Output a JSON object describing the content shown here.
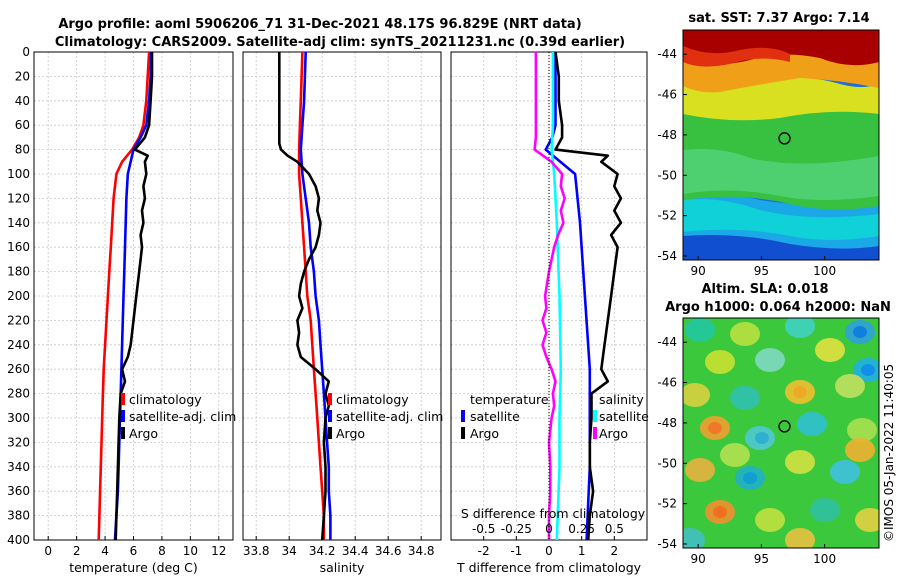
{
  "header": {
    "title1": "Argo profile: aoml 5906206_71 31-Dec-2021 48.17S 96.829E (NRT data)",
    "title2": "Climatology: CARS2009. Satellite-adj clim: synTS_20211231.nc (0.39d earlier)"
  },
  "side_label": "©IMOS 05-Jan-2022 11:40:05",
  "colors": {
    "climatology": "#ff0000",
    "satellite": "#0000ff",
    "argo": "#000000",
    "temp_diff": "#ff00ff",
    "sal_diff": "#00ffff"
  },
  "depth_ticks": [
    "0",
    "20",
    "40",
    "60",
    "80",
    "100",
    "120",
    "140",
    "160",
    "180",
    "200",
    "220",
    "240",
    "260",
    "280",
    "300",
    "320",
    "340",
    "360",
    "380",
    "400"
  ],
  "chart_data": [
    {
      "type": "line",
      "id": "temperature",
      "xlabel": "temperature (deg C)",
      "ylabel": "",
      "xlim": [
        -1,
        13
      ],
      "ylim": [
        400,
        0
      ],
      "xticks": [
        0,
        2,
        4,
        6,
        8,
        10,
        12
      ],
      "xtick_labels": [
        "0",
        "2",
        "4",
        "6",
        "8",
        "10",
        "12"
      ],
      "legend": [
        "climatology",
        "satellite-adj. clim",
        "Argo"
      ],
      "series": [
        {
          "name": "climatology",
          "color": "#ff0000",
          "depth": [
            0,
            20,
            40,
            60,
            70,
            80,
            90,
            100,
            120,
            140,
            160,
            180,
            200,
            220,
            240,
            260,
            280,
            300,
            320,
            340,
            360,
            380,
            400
          ],
          "values": [
            7.1,
            7.0,
            6.9,
            6.7,
            6.4,
            5.9,
            5.2,
            4.8,
            4.6,
            4.5,
            4.4,
            4.3,
            4.2,
            4.1,
            4.0,
            3.9,
            3.85,
            3.8,
            3.75,
            3.7,
            3.65,
            3.6,
            3.55
          ]
        },
        {
          "name": "satellite-adj. clim",
          "color": "#0000ff",
          "depth": [
            0,
            20,
            40,
            60,
            70,
            80,
            100,
            120,
            140,
            160,
            180,
            200,
            220,
            240,
            260,
            280,
            300,
            320,
            340,
            360,
            380,
            400
          ],
          "values": [
            7.25,
            7.2,
            7.1,
            6.9,
            6.5,
            6.0,
            5.6,
            5.5,
            5.45,
            5.4,
            5.35,
            5.3,
            5.25,
            5.2,
            5.15,
            5.1,
            5.05,
            5.0,
            4.95,
            4.9,
            4.8,
            4.7
          ]
        },
        {
          "name": "Argo",
          "color": "#000000",
          "depth": [
            0,
            20,
            40,
            60,
            70,
            80,
            85,
            90,
            100,
            110,
            120,
            130,
            140,
            150,
            160,
            180,
            200,
            220,
            240,
            250,
            260,
            270,
            280,
            300,
            320,
            340,
            360,
            380,
            400
          ],
          "values": [
            7.3,
            7.3,
            7.2,
            7.1,
            6.8,
            6.1,
            7.0,
            6.8,
            6.9,
            6.7,
            6.8,
            6.6,
            6.7,
            6.5,
            6.6,
            6.4,
            6.2,
            6.0,
            5.8,
            5.6,
            5.2,
            5.4,
            5.1,
            5.0,
            4.95,
            4.9,
            4.85,
            4.8,
            4.75
          ]
        }
      ]
    },
    {
      "type": "line",
      "id": "salinity",
      "xlabel": "salinity",
      "ylabel": "",
      "xlim": [
        33.72,
        34.92
      ],
      "ylim": [
        400,
        0
      ],
      "xticks": [
        33.8,
        34.0,
        34.2,
        34.4,
        34.6,
        34.8
      ],
      "xtick_labels": [
        "33.8",
        "34",
        "34.2",
        "34.4",
        "34.6",
        "34.8"
      ],
      "legend": [
        "climatology",
        "satellite-adj. clim",
        "Argo"
      ],
      "series": [
        {
          "name": "climatology",
          "color": "#ff0000",
          "depth": [
            0,
            20,
            40,
            60,
            80,
            100,
            120,
            140,
            160,
            180,
            200,
            220,
            240,
            260,
            280,
            300,
            320,
            340,
            360,
            380,
            400
          ],
          "values": [
            34.08,
            34.075,
            34.07,
            34.065,
            34.06,
            34.06,
            34.07,
            34.08,
            34.09,
            34.1,
            34.11,
            34.13,
            34.14,
            34.15,
            34.16,
            34.17,
            34.18,
            34.19,
            34.2,
            34.21,
            34.21
          ]
        },
        {
          "name": "satellite-adj. clim",
          "color": "#0000ff",
          "depth": [
            0,
            20,
            40,
            60,
            80,
            100,
            120,
            140,
            160,
            180,
            200,
            220,
            240,
            260,
            280,
            300,
            320,
            340,
            360,
            380,
            400
          ],
          "values": [
            34.1,
            34.095,
            34.09,
            34.08,
            34.07,
            34.08,
            34.1,
            34.12,
            34.13,
            34.15,
            34.16,
            34.18,
            34.19,
            34.2,
            34.21,
            34.22,
            34.23,
            34.24,
            34.24,
            34.25,
            34.25
          ]
        },
        {
          "name": "Argo",
          "color": "#000000",
          "depth": [
            0,
            20,
            40,
            60,
            75,
            80,
            85,
            90,
            100,
            110,
            120,
            130,
            140,
            150,
            160,
            170,
            180,
            190,
            200,
            210,
            220,
            230,
            240,
            250,
            260,
            270,
            280,
            290,
            300,
            320,
            340,
            360,
            380,
            400
          ],
          "values": [
            33.94,
            33.94,
            33.94,
            33.94,
            33.94,
            33.95,
            33.99,
            34.05,
            34.12,
            34.16,
            34.18,
            34.17,
            34.19,
            34.18,
            34.16,
            34.12,
            34.09,
            34.07,
            34.06,
            34.08,
            34.05,
            34.06,
            34.05,
            34.07,
            34.16,
            34.24,
            34.22,
            34.24,
            34.22,
            34.21,
            34.22,
            34.22,
            34.21,
            34.2
          ]
        }
      ]
    },
    {
      "type": "line",
      "id": "differences",
      "xlabel": "T difference from climatology",
      "xlabel_top": "S difference from climatology",
      "xlim": [
        -3,
        3
      ],
      "ylim": [
        400,
        0
      ],
      "xticks": [
        -2,
        -1,
        0,
        1,
        2
      ],
      "xtick_labels": [
        "-2",
        "-1",
        "0",
        "1",
        "2"
      ],
      "s_xticks": [
        -0.5,
        -0.25,
        0,
        0.25,
        0.5
      ],
      "s_xtick_labels": [
        "-0.5",
        "-0.25",
        "0",
        "0.25",
        "0.5"
      ],
      "legend_temperature": [
        "temperature",
        "satellite",
        "Argo"
      ],
      "legend_salinity": [
        "salinity",
        "satellite",
        "Argo"
      ],
      "series": [
        {
          "name": "temperature satellite",
          "color": "#0000ff",
          "depth": [
            0,
            20,
            40,
            60,
            70,
            80,
            100,
            140,
            200,
            260,
            300,
            340,
            400
          ],
          "values": [
            0.2,
            0.2,
            0.2,
            0.2,
            0.1,
            -0.1,
            0.8,
            0.95,
            1.1,
            1.25,
            1.25,
            1.25,
            1.15
          ]
        },
        {
          "name": "temperature Argo",
          "color": "#000000",
          "depth": [
            0,
            20,
            40,
            60,
            70,
            80,
            85,
            90,
            100,
            110,
            120,
            130,
            140,
            150,
            160,
            180,
            200,
            220,
            240,
            260,
            270,
            280,
            300,
            320,
            340,
            360,
            380,
            400
          ],
          "values": [
            0.2,
            0.3,
            0.3,
            0.4,
            0.4,
            0.2,
            1.8,
            1.6,
            2.1,
            2.0,
            2.2,
            2.0,
            2.2,
            1.9,
            2.1,
            2.0,
            1.9,
            1.8,
            1.7,
            1.6,
            1.8,
            1.3,
            1.3,
            1.25,
            1.25,
            1.35,
            1.25,
            1.2
          ]
        },
        {
          "name": "salinity satellite",
          "color": "#00ffff",
          "depth": [
            0,
            20,
            40,
            60,
            80,
            100,
            140,
            200,
            260,
            300,
            340,
            400
          ],
          "values": [
            0.03,
            0.03,
            0.03,
            0.03,
            0.02,
            0.04,
            0.06,
            0.08,
            0.09,
            0.08,
            0.08,
            0.06
          ]
        },
        {
          "name": "salinity Argo",
          "color": "#ff00ff",
          "depth": [
            0,
            20,
            40,
            60,
            70,
            80,
            90,
            100,
            110,
            120,
            130,
            140,
            150,
            160,
            180,
            200,
            210,
            220,
            230,
            240,
            250,
            260,
            270,
            280,
            290,
            300,
            320,
            340,
            360,
            380,
            400
          ],
          "values": [
            -0.1,
            -0.1,
            -0.1,
            -0.1,
            -0.1,
            -0.11,
            0.02,
            0.1,
            0.09,
            0.12,
            0.09,
            0.11,
            0.07,
            0.04,
            0.0,
            -0.03,
            -0.02,
            -0.05,
            -0.02,
            -0.05,
            -0.02,
            0.02,
            0.05,
            0.03,
            0.04,
            0.02,
            0.0,
            0.01,
            0.01,
            0.0,
            0.0
          ]
        }
      ]
    },
    {
      "type": "heatmap",
      "id": "sst_map",
      "title": "sat. SST: 7.37 Argo: 7.14",
      "xlim": [
        88.8,
        104.3
      ],
      "ylim": [
        -54.2,
        -42.8
      ],
      "xticks": [
        90,
        95,
        100
      ],
      "xtick_labels": [
        "90",
        "95",
        "100"
      ],
      "yticks": [
        -44,
        -46,
        -48,
        -50,
        -52,
        -54
      ],
      "ytick_labels": [
        "-44",
        "-46",
        "-48",
        "-50",
        "-52",
        "-54"
      ],
      "marker": {
        "lon": 96.829,
        "lat": -48.17
      }
    },
    {
      "type": "heatmap",
      "id": "sla_map",
      "title": "Altim. SLA: 0.018",
      "subtitle": "Argo h1000: 0.064 h2000: NaN",
      "xlim": [
        88.8,
        104.3
      ],
      "ylim": [
        -54.2,
        -42.8
      ],
      "xticks": [
        90,
        95,
        100
      ],
      "xtick_labels": [
        "90",
        "95",
        "100"
      ],
      "yticks": [
        -44,
        -46,
        -48,
        -50,
        -52,
        -54
      ],
      "ytick_labels": [
        "-44",
        "-46",
        "-48",
        "-50",
        "-52",
        "-54"
      ],
      "marker": {
        "lon": 96.829,
        "lat": -48.17
      }
    }
  ]
}
